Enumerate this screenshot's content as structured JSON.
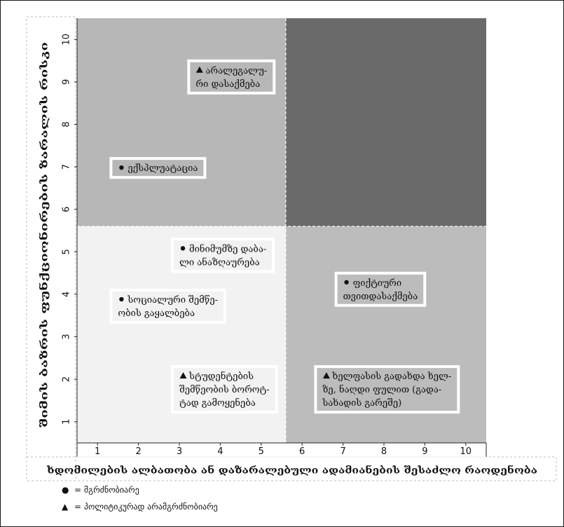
{
  "chart_data": {
    "type": "scatter",
    "xlabel": "ხდომილების ალბათობა ან დაზარალებული ადამიანების შესაძლო რაოდენობა",
    "ylabel": "შიმის ბაზრის ფუნქციონირების ზარალის რისკი",
    "xlim": [
      0.5,
      10.5
    ],
    "ylim": [
      0.5,
      10.5
    ],
    "x_ticks": [
      "1",
      "2",
      "3",
      "4",
      "5",
      "6",
      "7",
      "8",
      "9",
      "10"
    ],
    "y_ticks": [
      "1",
      "2",
      "3",
      "4",
      "5",
      "6",
      "7",
      "8",
      "9",
      "10"
    ],
    "grid": false,
    "quadrants": [
      {
        "x": [
          0.5,
          5.6
        ],
        "y": [
          0.5,
          5.6
        ],
        "color": "#f2f2f2"
      },
      {
        "x": [
          5.6,
          10.5
        ],
        "y": [
          0.5,
          5.6
        ],
        "color": "#bcbcbc"
      },
      {
        "x": [
          0.5,
          5.6
        ],
        "y": [
          5.6,
          10.5
        ],
        "color": "#b7b7b7"
      },
      {
        "x": [
          5.6,
          10.5
        ],
        "y": [
          5.6,
          10.5
        ],
        "color": "#6a6a6a"
      }
    ],
    "points": [
      {
        "x": 3.4,
        "y": 9.2,
        "marker": "triangle",
        "lines": [
          "არალეგალუ-",
          "რი დასაქმება"
        ]
      },
      {
        "x": 1.5,
        "y": 6.9,
        "marker": "dot",
        "lines": [
          "ექსპლუატაცია"
        ]
      },
      {
        "x": 3.0,
        "y": 5.0,
        "marker": "dot",
        "lines": [
          "მინიმუმზე დაბა-",
          "ლი ანაზღაურება"
        ]
      },
      {
        "x": 1.5,
        "y": 3.8,
        "marker": "dot",
        "lines": [
          "სოციალური შემწე-",
          "ობის გაყალბება"
        ]
      },
      {
        "x": 7.0,
        "y": 4.2,
        "marker": "dot",
        "lines": [
          "ფიქტიური",
          "თვითდასაქმება"
        ]
      },
      {
        "x": 3.0,
        "y": 2.0,
        "marker": "triangle",
        "lines": [
          "სტუდენტების",
          "შემწეობის ბოროტ-",
          "ტად გამოყენება"
        ]
      },
      {
        "x": 6.5,
        "y": 2.0,
        "marker": "triangle",
        "lines": [
          "ხელფასის გადახდა ხელ-",
          "ზე, ნაღდი ფულით (გადა-",
          "სახადის გარეშე)"
        ]
      }
    ],
    "legend": [
      {
        "marker": "dot",
        "label": "= მგრძნობიარე"
      },
      {
        "marker": "triangle",
        "label": "= პოლიტიკურად არამგრძნობიარე"
      }
    ]
  }
}
